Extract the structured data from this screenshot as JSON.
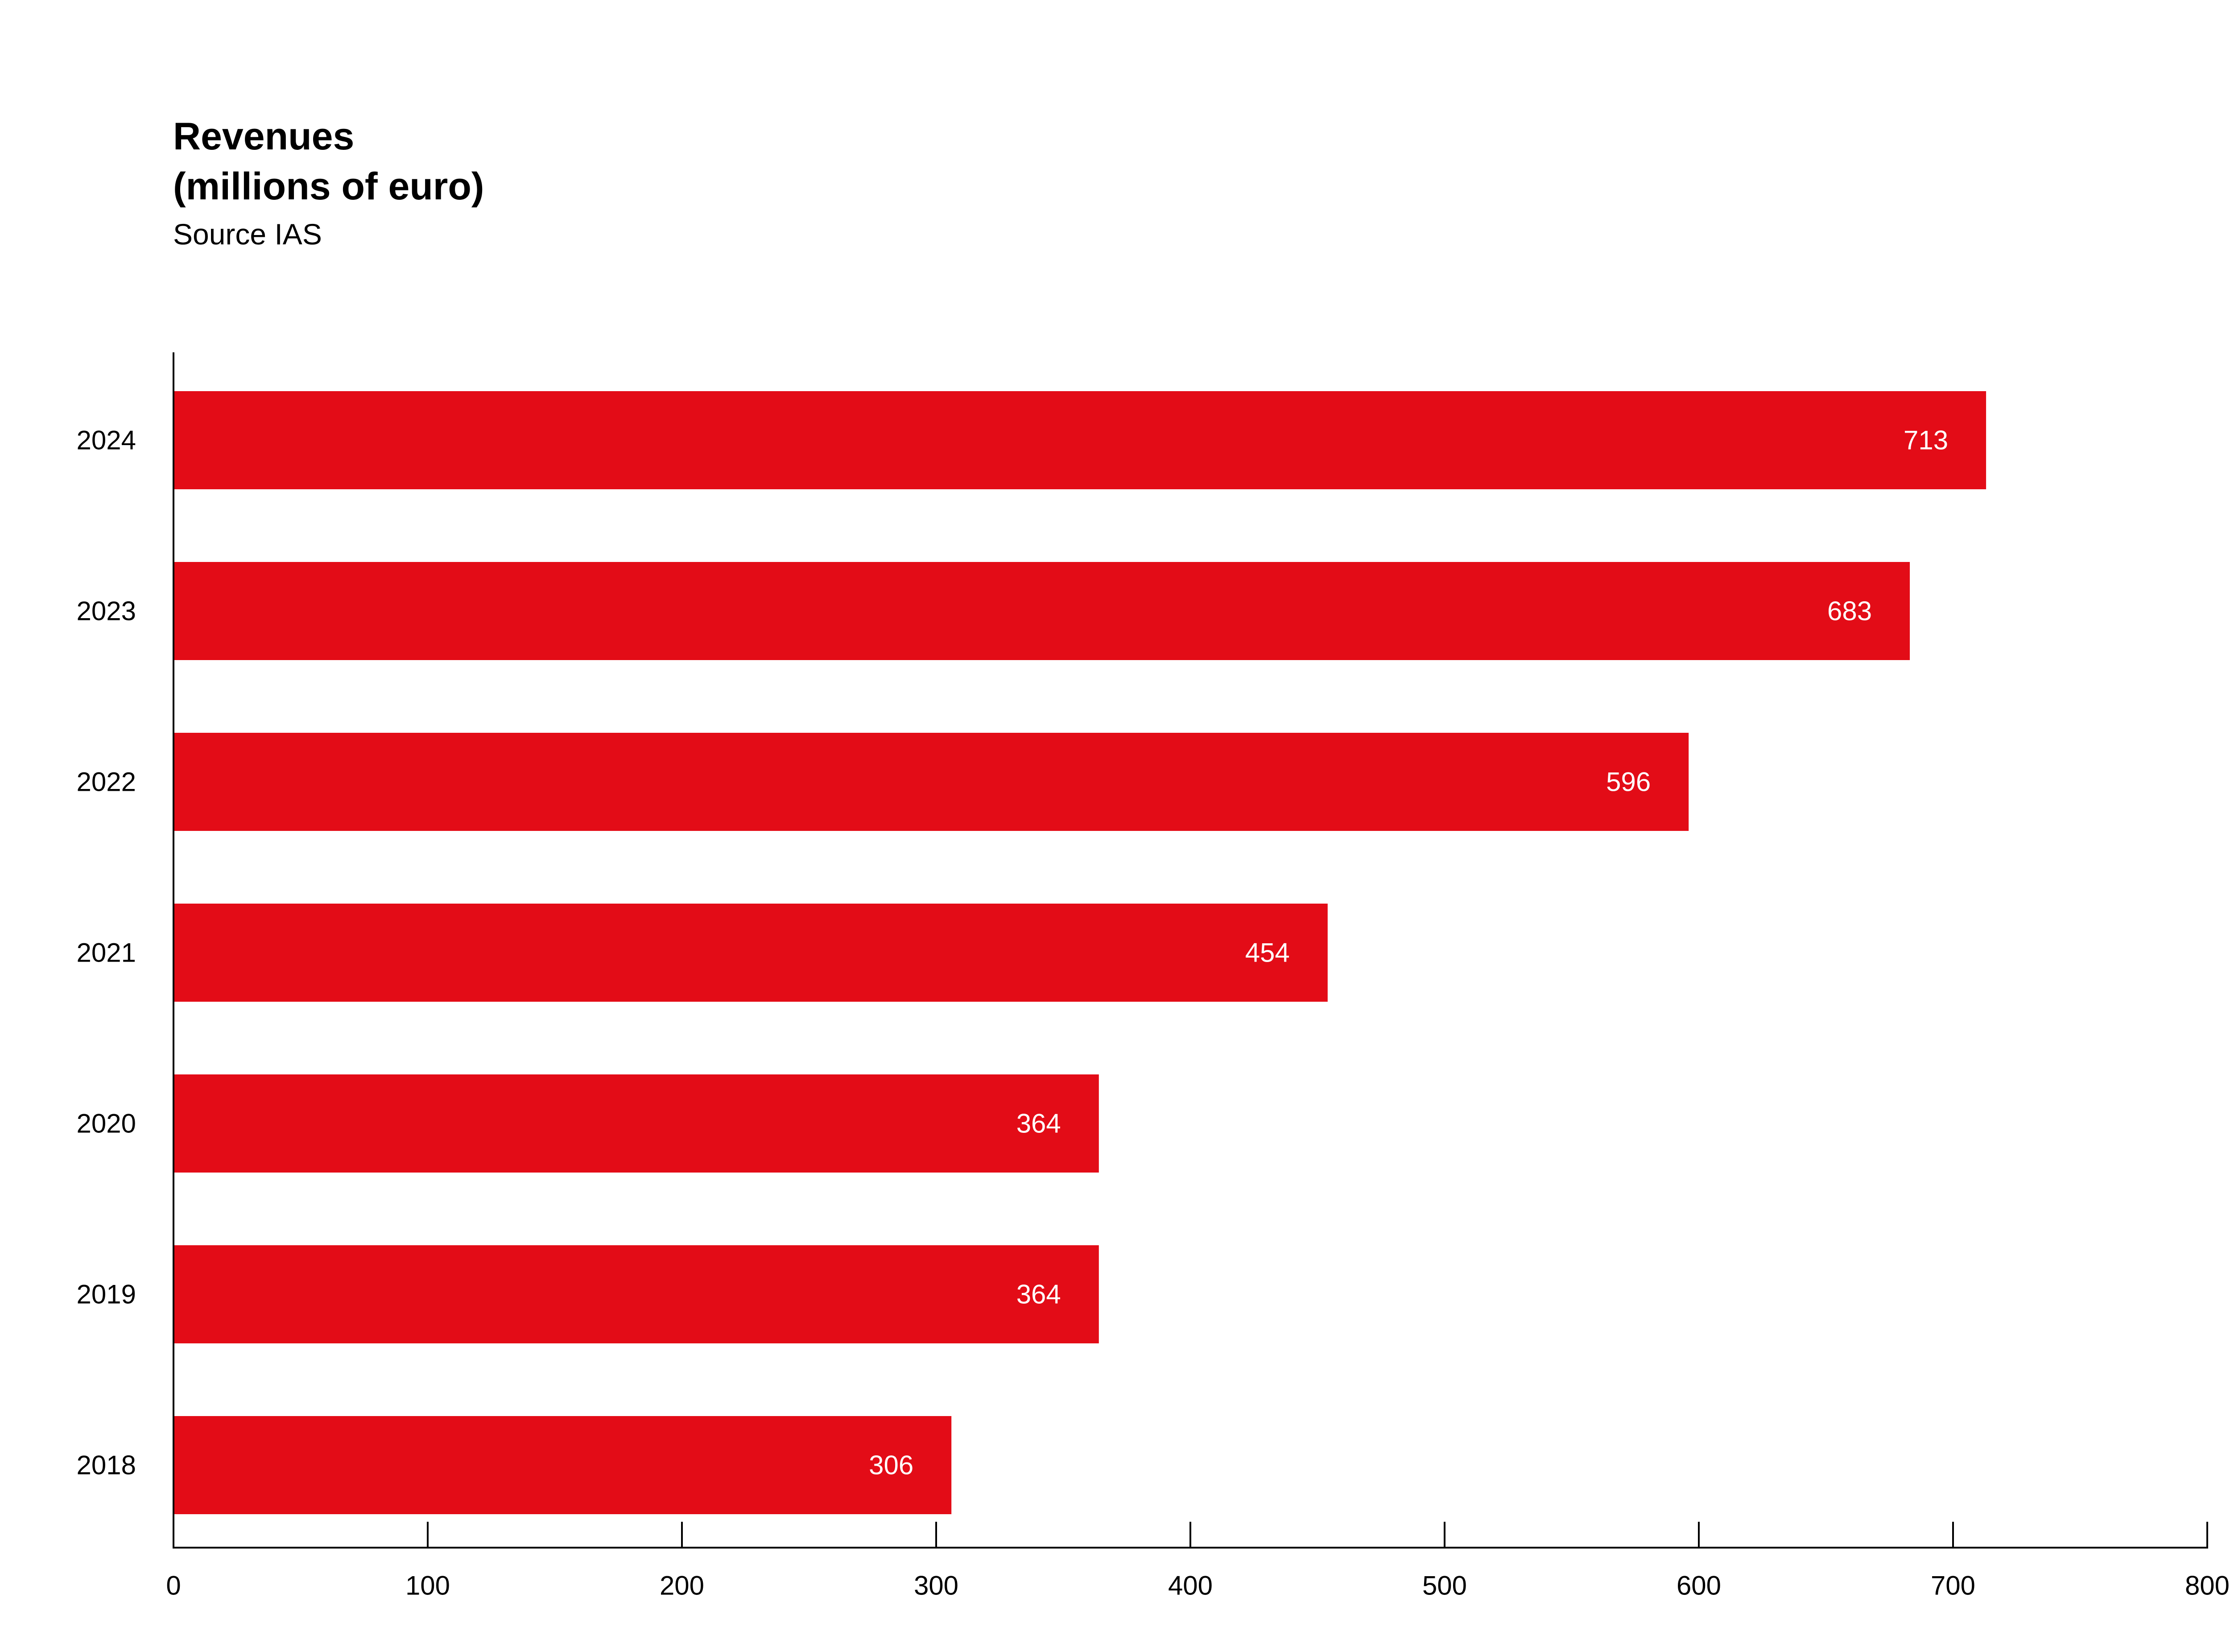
{
  "header": {
    "title_line1": "Revenues",
    "title_line2": "(millions of euro)",
    "subtitle": "Source IAS"
  },
  "chart_data": {
    "type": "bar",
    "orientation": "horizontal",
    "title": "Revenues (millions of euro)",
    "subtitle": "Source IAS",
    "categories": [
      "2024",
      "2023",
      "2022",
      "2021",
      "2020",
      "2019",
      "2018"
    ],
    "values": [
      713,
      683,
      596,
      454,
      364,
      364,
      306
    ],
    "data_labels": [
      "713",
      "683",
      "596",
      "454",
      "364",
      "364",
      "306"
    ],
    "xlim": [
      0,
      800
    ],
    "x_ticks": [
      0,
      100,
      200,
      300,
      400,
      500,
      600,
      700,
      800
    ],
    "x_tick_labels": [
      "0",
      "100",
      "200",
      "300",
      "400",
      "500",
      "600",
      "700",
      "800"
    ],
    "grid": false,
    "bar_color": "#E30C17",
    "label_color": "#FFFFFF",
    "axis_color": "#000000"
  }
}
